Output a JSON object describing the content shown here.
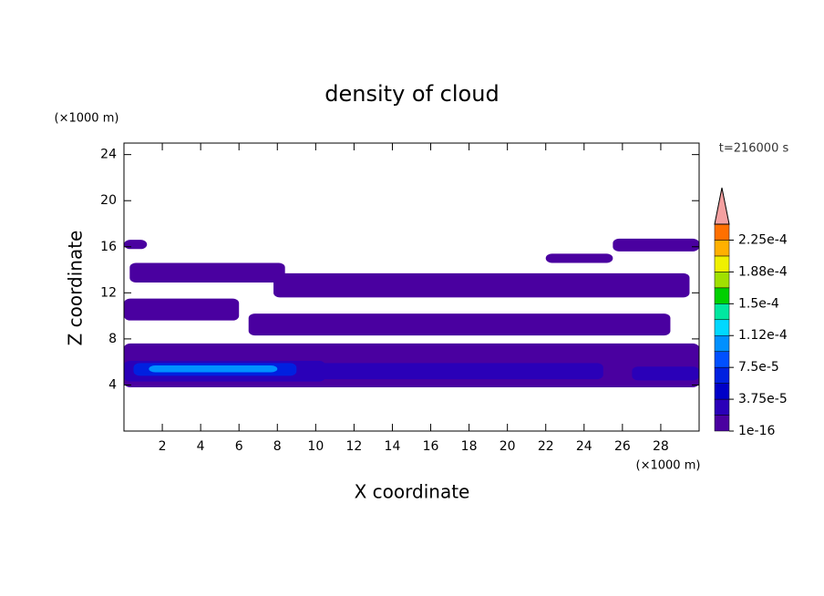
{
  "chart_data": {
    "type": "contour",
    "title": "density of cloud",
    "xlabel": "X coordinate",
    "ylabel": "Z coordinate",
    "xunit": "(×1000 m)",
    "yunit": "(×1000 m)",
    "annotation": "t=216000 s",
    "xlim": [
      0,
      30
    ],
    "ylim": [
      0,
      25
    ],
    "xticks": [
      2,
      4,
      6,
      8,
      10,
      12,
      14,
      16,
      18,
      20,
      22,
      24,
      26,
      28
    ],
    "yticks": [
      4,
      8,
      12,
      16,
      20,
      24
    ],
    "colorbar": {
      "lim": [
        1e-16,
        0.00024375
      ],
      "colors": [
        "#4a00a0",
        "#2a00b8",
        "#0000c8",
        "#0020e0",
        "#0050ff",
        "#0090ff",
        "#00d8ff",
        "#00e8a0",
        "#00d000",
        "#a0e000",
        "#f0f000",
        "#ffb000",
        "#ff7000"
      ],
      "top_color": "#ff2020",
      "extend_color": "#f4a0a0",
      "ticks": [
        {
          "value": 1e-16,
          "label": "1e-16"
        },
        {
          "value": 3.75e-05,
          "label": "3.75e-5"
        },
        {
          "value": 7.5e-05,
          "label": "7.5e-5"
        },
        {
          "value": 0.0001125,
          "label": "1.12e-4"
        },
        {
          "value": 0.00015,
          "label": "1.5e-4"
        },
        {
          "value": 0.0001875,
          "label": "1.88e-4"
        },
        {
          "value": 0.000225,
          "label": "2.25e-4"
        }
      ]
    },
    "regions": [
      {
        "x": [
          0,
          1.2
        ],
        "z": [
          15.8,
          16.6
        ],
        "level": 1e-16
      },
      {
        "x": [
          0.3,
          8.4
        ],
        "z": [
          12.9,
          14.6
        ],
        "level": 1e-16
      },
      {
        "x": [
          0,
          6
        ],
        "z": [
          9.6,
          11.5
        ],
        "level": 1e-16
      },
      {
        "x": [
          6.5,
          28.5
        ],
        "z": [
          8.3,
          10.2
        ],
        "level": 1e-16
      },
      {
        "x": [
          7.8,
          29.5
        ],
        "z": [
          11.6,
          13.7
        ],
        "level": 1e-16
      },
      {
        "x": [
          22,
          25.5
        ],
        "z": [
          14.6,
          15.4
        ],
        "level": 1e-16
      },
      {
        "x": [
          25.5,
          30
        ],
        "z": [
          15.6,
          16.7
        ],
        "level": 1e-16
      },
      {
        "x": [
          0,
          30
        ],
        "z": [
          3.8,
          7.6
        ],
        "level": 1e-16
      },
      {
        "x": [
          0,
          10.5
        ],
        "z": [
          4.3,
          6.1
        ],
        "level": 3.75e-05
      },
      {
        "x": [
          10,
          25
        ],
        "z": [
          4.5,
          5.9
        ],
        "level": 3.75e-05
      },
      {
        "x": [
          26.5,
          30
        ],
        "z": [
          4.4,
          5.6
        ],
        "level": 3.75e-05
      },
      {
        "x": [
          0.5,
          9
        ],
        "z": [
          4.8,
          5.9
        ],
        "level": 7.5e-05
      },
      {
        "x": [
          1.3,
          8
        ],
        "z": [
          5.1,
          5.7
        ],
        "level": 0.0001125
      }
    ]
  }
}
